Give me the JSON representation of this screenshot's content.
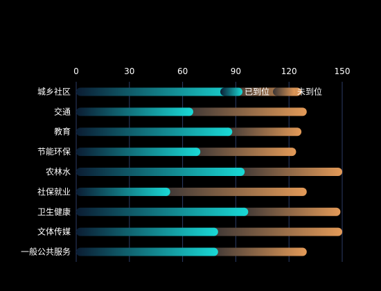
{
  "chart_data": {
    "type": "bar",
    "stacked": true,
    "orientation": "horizontal",
    "categories": [
      "城乡社区",
      "交通",
      "教育",
      "节能环保",
      "农林水",
      "社保就业",
      "卫生健康",
      "文体传媒",
      "一般公共服务"
    ],
    "series": [
      {
        "name": "已到位",
        "values": [
          92,
          66,
          88,
          70,
          95,
          53,
          97,
          80,
          80
        ]
      },
      {
        "name": "未到位",
        "values": [
          35,
          64,
          39,
          54,
          55,
          77,
          52,
          70,
          50
        ]
      }
    ],
    "xlim": [
      0,
      150
    ],
    "xticks": [
      0,
      30,
      60,
      90,
      120,
      150
    ],
    "x_axis_position": "top",
    "grid": true,
    "legend_position": "top-right",
    "colors": {
      "background": "#000000",
      "done_start": "#0b1d33",
      "done_end": "#19d9d6",
      "todo_start": "#3a3535",
      "todo_end": "#e39a58",
      "grid": "#2b3d66"
    }
  }
}
